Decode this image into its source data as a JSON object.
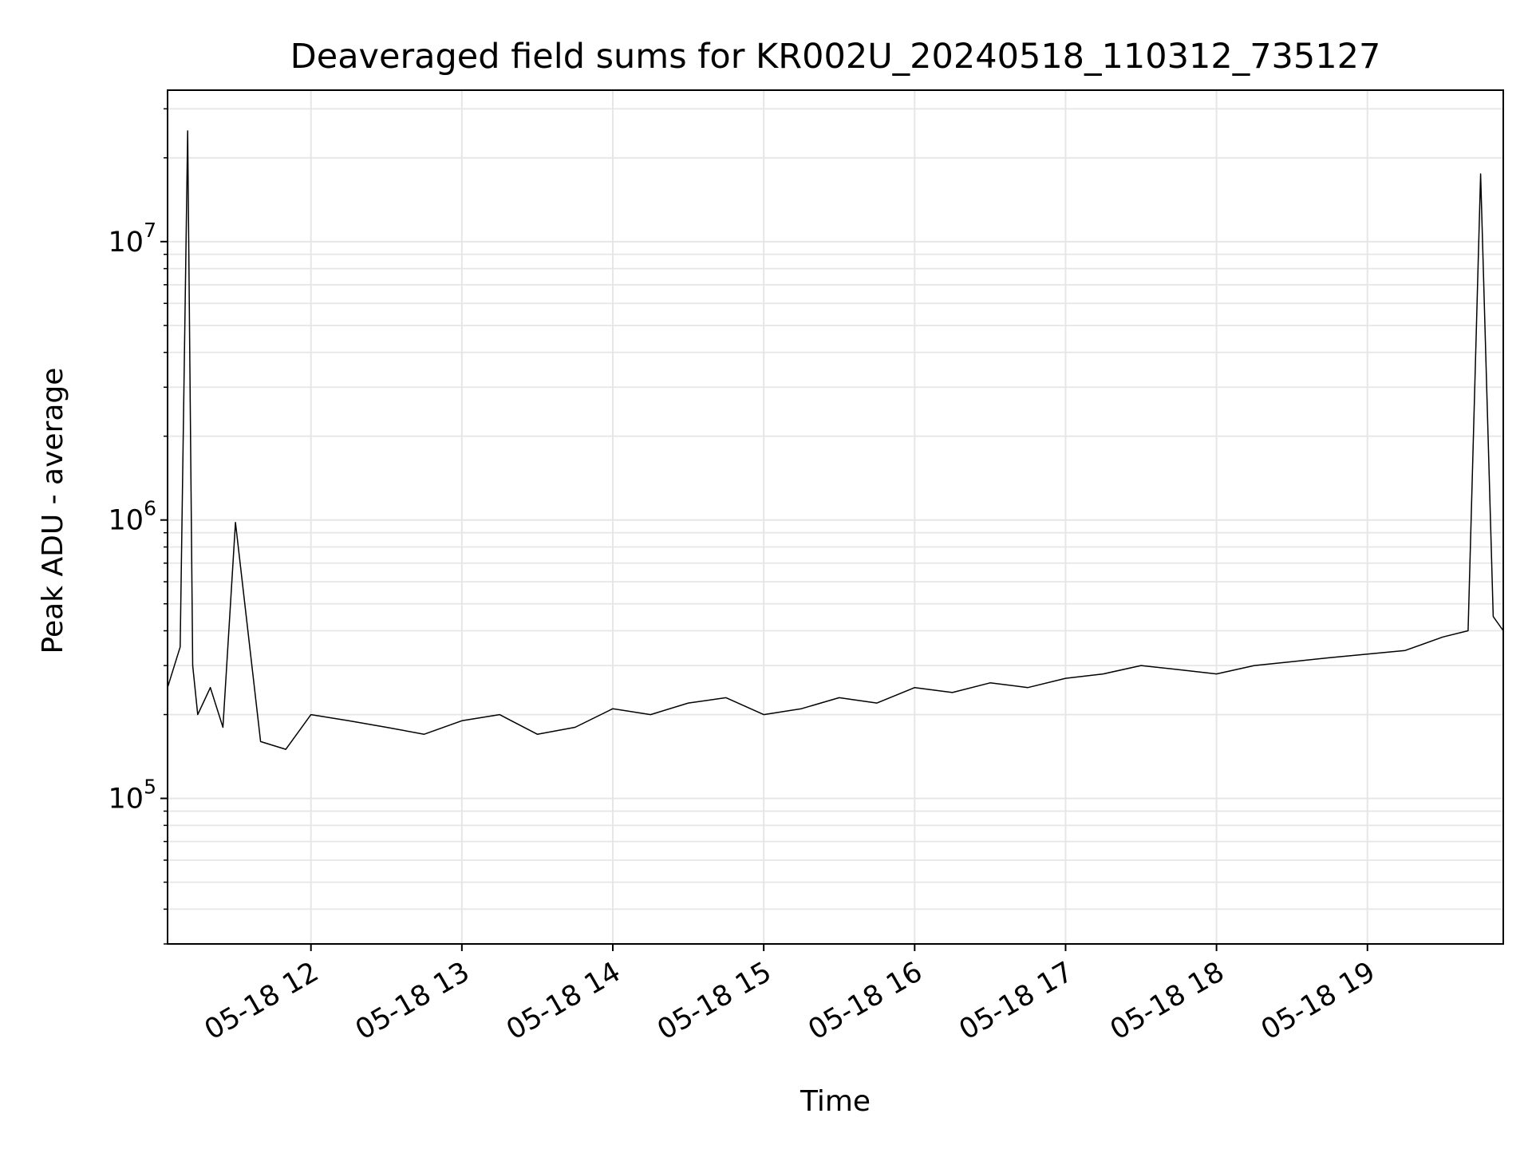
{
  "chart_data": {
    "type": "line",
    "title": "Deaveraged field sums for KR002U_20240518_110312_735127",
    "xlabel": "Time",
    "ylabel": "Peak ADU - average",
    "y_scale": "log",
    "x_range": [
      "2024-05-18 11:03",
      "2024-05-18 19:54"
    ],
    "ylim": [
      30000,
      35000000
    ],
    "grid": true,
    "line_color": "#000000",
    "x_ticks": [
      {
        "time": "2024-05-18 12:00",
        "label": "05-18 12"
      },
      {
        "time": "2024-05-18 13:00",
        "label": "05-18 13"
      },
      {
        "time": "2024-05-18 14:00",
        "label": "05-18 14"
      },
      {
        "time": "2024-05-18 15:00",
        "label": "05-18 15"
      },
      {
        "time": "2024-05-18 16:00",
        "label": "05-18 16"
      },
      {
        "time": "2024-05-18 17:00",
        "label": "05-18 17"
      },
      {
        "time": "2024-05-18 18:00",
        "label": "05-18 18"
      },
      {
        "time": "2024-05-18 19:00",
        "label": "05-18 19"
      }
    ],
    "y_ticks": [
      {
        "value": 100000,
        "base": "10",
        "exp": "5"
      },
      {
        "value": 1000000,
        "base": "10",
        "exp": "6"
      },
      {
        "value": 10000000,
        "base": "10",
        "exp": "7"
      }
    ],
    "series": [
      {
        "x": [
          "2024-05-18 11:03",
          "2024-05-18 11:08",
          "2024-05-18 11:11",
          "2024-05-18 11:13",
          "2024-05-18 11:15",
          "2024-05-18 11:20",
          "2024-05-18 11:25",
          "2024-05-18 11:30",
          "2024-05-18 11:40",
          "2024-05-18 11:50",
          "2024-05-18 12:00",
          "2024-05-18 12:15",
          "2024-05-18 12:30",
          "2024-05-18 12:45",
          "2024-05-18 13:00",
          "2024-05-18 13:15",
          "2024-05-18 13:30",
          "2024-05-18 13:45",
          "2024-05-18 14:00",
          "2024-05-18 14:15",
          "2024-05-18 14:30",
          "2024-05-18 14:45",
          "2024-05-18 15:00",
          "2024-05-18 15:15",
          "2024-05-18 15:30",
          "2024-05-18 15:45",
          "2024-05-18 16:00",
          "2024-05-18 16:15",
          "2024-05-18 16:30",
          "2024-05-18 16:45",
          "2024-05-18 17:00",
          "2024-05-18 17:15",
          "2024-05-18 17:30",
          "2024-05-18 17:45",
          "2024-05-18 18:00",
          "2024-05-18 18:15",
          "2024-05-18 18:30",
          "2024-05-18 18:45",
          "2024-05-18 19:00",
          "2024-05-18 19:15",
          "2024-05-18 19:30",
          "2024-05-18 19:40",
          "2024-05-18 19:45",
          "2024-05-18 19:50",
          "2024-05-18 19:54"
        ],
        "values": [
          250000,
          350000,
          25000000,
          300000,
          200000,
          250000,
          180000,
          980000,
          160000,
          150000,
          200000,
          190000,
          180000,
          170000,
          190000,
          200000,
          170000,
          180000,
          210000,
          200000,
          220000,
          230000,
          200000,
          210000,
          230000,
          220000,
          250000,
          240000,
          260000,
          250000,
          270000,
          280000,
          300000,
          290000,
          280000,
          300000,
          310000,
          320000,
          330000,
          340000,
          380000,
          400000,
          17500000,
          450000,
          400000
        ]
      }
    ]
  }
}
